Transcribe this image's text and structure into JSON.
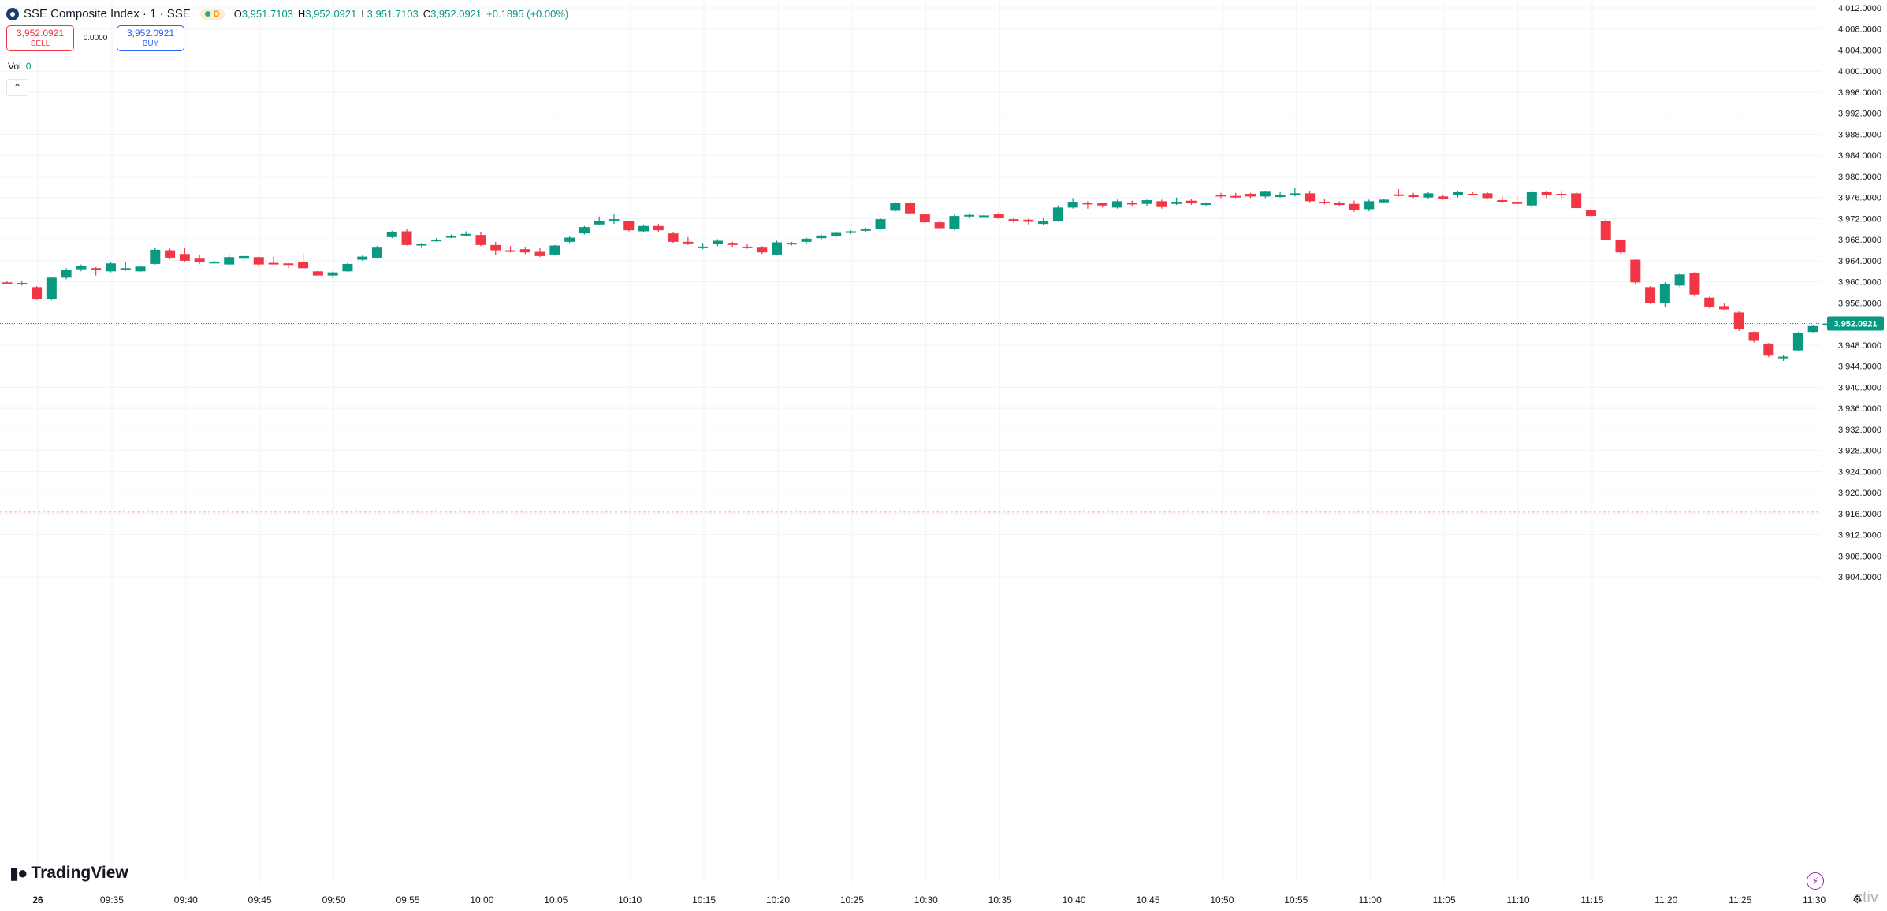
{
  "header": {
    "title": "SSE Composite Index · 1 · SSE",
    "pill_label": "D",
    "ohlc": [
      {
        "label": "O",
        "value": "3,951.7103"
      },
      {
        "label": "H",
        "value": "3,952.0921"
      },
      {
        "label": "L",
        "value": "3,951.7103"
      },
      {
        "label": "C",
        "value": "3,952.0921"
      }
    ],
    "change": "+0.1895 (+0.00%)"
  },
  "trade": {
    "sell_price": "3,952.0921",
    "sell_label": "SELL",
    "spread": "0.0000",
    "buy_price": "3,952.0921",
    "buy_label": "BUY"
  },
  "volume": {
    "label": "Vol",
    "value": "0"
  },
  "collapse_icon": "chevron-up-icon",
  "brand": "TradingView",
  "watermark": "ctiv",
  "colors": {
    "up": "#089981",
    "down": "#f23645",
    "grid": "#f0f3fa",
    "text": "#131722",
    "price_line": "#089981"
  },
  "chart_data": {
    "type": "candlestick",
    "ylim": [
      3902,
      4013
    ],
    "y_ticks": [
      "4,012.0000",
      "4,008.0000",
      "4,004.0000",
      "4,000.0000",
      "3,996.0000",
      "3,992.0000",
      "3,988.0000",
      "3,984.0000",
      "3,980.0000",
      "3,976.0000",
      "3,972.0000",
      "3,968.0000",
      "3,964.0000",
      "3,960.0000",
      "3,956.0000",
      "3,952.0000",
      "3,948.0000",
      "3,944.0000",
      "3,940.0000",
      "3,936.0000",
      "3,932.0000",
      "3,928.0000",
      "3,924.0000",
      "3,920.0000",
      "3,916.0000",
      "3,912.0000",
      "3,908.0000",
      "3,904.0000"
    ],
    "x_labels": [
      "26",
      "09:35",
      "09:40",
      "09:45",
      "09:50",
      "09:55",
      "10:00",
      "10:05",
      "10:10",
      "10:15",
      "10:20",
      "10:25",
      "10:30",
      "10:35",
      "10:40",
      "10:45",
      "10:50",
      "10:55",
      "11:00",
      "11:05",
      "11:10",
      "11:15",
      "11:20",
      "11:25",
      "11:30"
    ],
    "last_price": 3952.0921,
    "last_price_label": "3,952.0921",
    "ref_line": 3916.3,
    "candles": [
      [
        3959.9,
        3960.2,
        3959.6,
        3959.7
      ],
      [
        3959.8,
        3960.2,
        3959.3,
        3959.7
      ],
      [
        3959.0,
        3959.2,
        3956.5,
        3956.8
      ],
      [
        3956.8,
        3961.0,
        3956.5,
        3960.8
      ],
      [
        3960.8,
        3962.6,
        3960.5,
        3962.3
      ],
      [
        3962.4,
        3963.3,
        3962.0,
        3963.0
      ],
      [
        3962.6,
        3962.8,
        3961.2,
        3962.4
      ],
      [
        3962.0,
        3963.8,
        3961.8,
        3963.5
      ],
      [
        3962.6,
        3963.8,
        3962.1,
        3962.6
      ],
      [
        3962.0,
        3963.1,
        3961.9,
        3962.9
      ],
      [
        3963.4,
        3966.4,
        3963.3,
        3966.1
      ],
      [
        3966.0,
        3966.3,
        3964.3,
        3964.6
      ],
      [
        3965.3,
        3966.4,
        3963.8,
        3964.0
      ],
      [
        3964.4,
        3965.2,
        3963.4,
        3963.7
      ],
      [
        3963.8,
        3964.0,
        3963.5,
        3963.8
      ],
      [
        3963.3,
        3965.2,
        3963.1,
        3964.7
      ],
      [
        3964.4,
        3965.2,
        3964.0,
        3964.9
      ],
      [
        3964.7,
        3964.8,
        3962.8,
        3963.3
      ],
      [
        3963.6,
        3964.8,
        3963.3,
        3963.5
      ],
      [
        3963.5,
        3963.6,
        3962.6,
        3963.3
      ],
      [
        3963.8,
        3965.4,
        3962.6,
        3962.6
      ],
      [
        3962.0,
        3962.3,
        3961.1,
        3961.2
      ],
      [
        3961.2,
        3962.0,
        3960.7,
        3961.8
      ],
      [
        3962.0,
        3963.6,
        3961.9,
        3963.4
      ],
      [
        3964.2,
        3965.0,
        3964.0,
        3964.8
      ],
      [
        3964.6,
        3966.8,
        3964.4,
        3966.5
      ],
      [
        3968.5,
        3969.7,
        3968.3,
        3969.5
      ],
      [
        3969.6,
        3970.0,
        3966.9,
        3967.0
      ],
      [
        3966.9,
        3967.4,
        3966.4,
        3967.2
      ],
      [
        3967.8,
        3968.3,
        3967.6,
        3968.0
      ],
      [
        3968.4,
        3969.0,
        3968.3,
        3968.7
      ],
      [
        3969.0,
        3969.6,
        3968.6,
        3969.1
      ],
      [
        3968.9,
        3969.4,
        3966.8,
        3967.0
      ],
      [
        3967.0,
        3967.6,
        3965.1,
        3966.0
      ],
      [
        3966.0,
        3966.8,
        3965.6,
        3965.8
      ],
      [
        3966.2,
        3966.6,
        3965.3,
        3965.6
      ],
      [
        3965.7,
        3966.4,
        3964.7,
        3964.9
      ],
      [
        3965.2,
        3967.0,
        3965.0,
        3966.9
      ],
      [
        3967.6,
        3968.6,
        3967.4,
        3968.4
      ],
      [
        3969.2,
        3970.6,
        3969.0,
        3970.4
      ],
      [
        3970.9,
        3972.4,
        3970.8,
        3971.5
      ],
      [
        3971.6,
        3972.8,
        3971.0,
        3971.9
      ],
      [
        3971.5,
        3971.6,
        3969.6,
        3969.8
      ],
      [
        3969.6,
        3970.9,
        3969.4,
        3970.6
      ],
      [
        3970.6,
        3971.0,
        3969.4,
        3969.8
      ],
      [
        3969.2,
        3969.4,
        3967.4,
        3967.6
      ],
      [
        3967.6,
        3968.5,
        3967.0,
        3967.4
      ],
      [
        3966.5,
        3967.4,
        3966.2,
        3966.7
      ],
      [
        3967.2,
        3968.1,
        3966.8,
        3967.8
      ],
      [
        3967.4,
        3967.6,
        3966.5,
        3967.0
      ],
      [
        3966.7,
        3967.2,
        3966.3,
        3966.5
      ],
      [
        3966.5,
        3966.8,
        3965.3,
        3965.6
      ],
      [
        3965.2,
        3967.8,
        3965.0,
        3967.5
      ],
      [
        3967.3,
        3967.6,
        3966.9,
        3967.4
      ],
      [
        3967.6,
        3968.4,
        3967.3,
        3968.2
      ],
      [
        3968.3,
        3969.0,
        3968.0,
        3968.8
      ],
      [
        3968.7,
        3969.5,
        3968.3,
        3969.3
      ],
      [
        3969.3,
        3969.8,
        3969.1,
        3969.6
      ],
      [
        3969.7,
        3970.3,
        3969.5,
        3970.1
      ],
      [
        3970.1,
        3972.2,
        3969.9,
        3971.9
      ],
      [
        3973.5,
        3975.2,
        3973.3,
        3975.0
      ],
      [
        3975.0,
        3975.4,
        3972.9,
        3973.0
      ],
      [
        3972.8,
        3973.2,
        3971.0,
        3971.3
      ],
      [
        3971.3,
        3971.6,
        3970.0,
        3970.2
      ],
      [
        3970.0,
        3972.8,
        3969.8,
        3972.5
      ],
      [
        3972.5,
        3973.0,
        3972.2,
        3972.7
      ],
      [
        3972.6,
        3972.9,
        3972.4,
        3972.6
      ],
      [
        3972.9,
        3973.3,
        3971.8,
        3972.1
      ],
      [
        3971.9,
        3972.2,
        3971.2,
        3971.5
      ],
      [
        3971.8,
        3972.0,
        3970.9,
        3971.4
      ],
      [
        3971.0,
        3972.1,
        3970.8,
        3971.6
      ],
      [
        3971.6,
        3974.5,
        3971.4,
        3974.1
      ],
      [
        3974.1,
        3975.9,
        3973.9,
        3975.2
      ],
      [
        3975.0,
        3975.3,
        3973.9,
        3974.9
      ],
      [
        3974.9,
        3975.0,
        3974.1,
        3974.5
      ],
      [
        3974.1,
        3975.6,
        3973.9,
        3975.3
      ],
      [
        3975.0,
        3975.4,
        3974.4,
        3974.7
      ],
      [
        3974.8,
        3975.6,
        3974.4,
        3975.5
      ],
      [
        3975.3,
        3975.6,
        3973.9,
        3974.2
      ],
      [
        3974.8,
        3976.0,
        3974.6,
        3975.2
      ],
      [
        3975.4,
        3975.8,
        3974.6,
        3974.9
      ],
      [
        3974.7,
        3975.1,
        3974.3,
        3974.9
      ],
      [
        3976.5,
        3976.9,
        3975.9,
        3976.4
      ],
      [
        3976.3,
        3976.9,
        3975.9,
        3976.2
      ],
      [
        3976.7,
        3976.9,
        3975.9,
        3976.2
      ],
      [
        3976.2,
        3977.3,
        3975.9,
        3977.1
      ],
      [
        3976.4,
        3977.0,
        3976.0,
        3976.4
      ],
      [
        3976.6,
        3977.9,
        3976.2,
        3976.8
      ],
      [
        3976.8,
        3977.2,
        3975.1,
        3975.3
      ],
      [
        3975.2,
        3975.7,
        3974.7,
        3975.0
      ],
      [
        3975.0,
        3975.3,
        3974.3,
        3974.6
      ],
      [
        3974.8,
        3975.4,
        3973.3,
        3973.6
      ],
      [
        3973.8,
        3975.6,
        3973.4,
        3975.3
      ],
      [
        3975.1,
        3975.8,
        3974.9,
        3975.6
      ],
      [
        3976.6,
        3977.6,
        3976.2,
        3976.5
      ],
      [
        3976.5,
        3976.9,
        3975.9,
        3976.1
      ],
      [
        3976.0,
        3977.0,
        3975.8,
        3976.8
      ],
      [
        3976.2,
        3976.5,
        3975.6,
        3975.8
      ],
      [
        3976.5,
        3977.2,
        3976.0,
        3977.0
      ],
      [
        3976.7,
        3977.0,
        3976.5,
        3976.6
      ],
      [
        3976.8,
        3977.0,
        3975.8,
        3975.9
      ],
      [
        3975.5,
        3976.3,
        3975.1,
        3975.2
      ],
      [
        3975.2,
        3976.3,
        3974.6,
        3974.8
      ],
      [
        3974.5,
        3977.4,
        3974.0,
        3977.0
      ],
      [
        3977.0,
        3977.2,
        3975.9,
        3976.4
      ],
      [
        3976.7,
        3977.1,
        3975.9,
        3976.5
      ],
      [
        3976.8,
        3977.0,
        3974.0,
        3974.0
      ],
      [
        3973.6,
        3973.9,
        3972.2,
        3972.5
      ],
      [
        3971.5,
        3971.9,
        3967.8,
        3968.0
      ],
      [
        3967.9,
        3968.0,
        3965.3,
        3965.6
      ],
      [
        3964.2,
        3964.3,
        3959.6,
        3959.9
      ],
      [
        3959.0,
        3959.2,
        3955.8,
        3956.0
      ],
      [
        3956.0,
        3959.9,
        3955.3,
        3959.5
      ],
      [
        3959.3,
        3961.7,
        3959.0,
        3961.4
      ],
      [
        3961.6,
        3961.9,
        3957.2,
        3957.6
      ],
      [
        3957.0,
        3957.2,
        3955.0,
        3955.3
      ],
      [
        3955.4,
        3955.9,
        3954.6,
        3954.8
      ],
      [
        3954.2,
        3954.4,
        3950.7,
        3951.0
      ],
      [
        3950.5,
        3950.6,
        3948.5,
        3948.8
      ],
      [
        3948.3,
        3948.4,
        3945.7,
        3946.0
      ],
      [
        3945.6,
        3946.1,
        3945.0,
        3945.8
      ],
      [
        3947.0,
        3950.5,
        3946.8,
        3950.3
      ],
      [
        3950.5,
        3951.8,
        3950.4,
        3951.6
      ],
      [
        3951.7,
        3952.1,
        3951.7,
        3952.09
      ]
    ]
  }
}
